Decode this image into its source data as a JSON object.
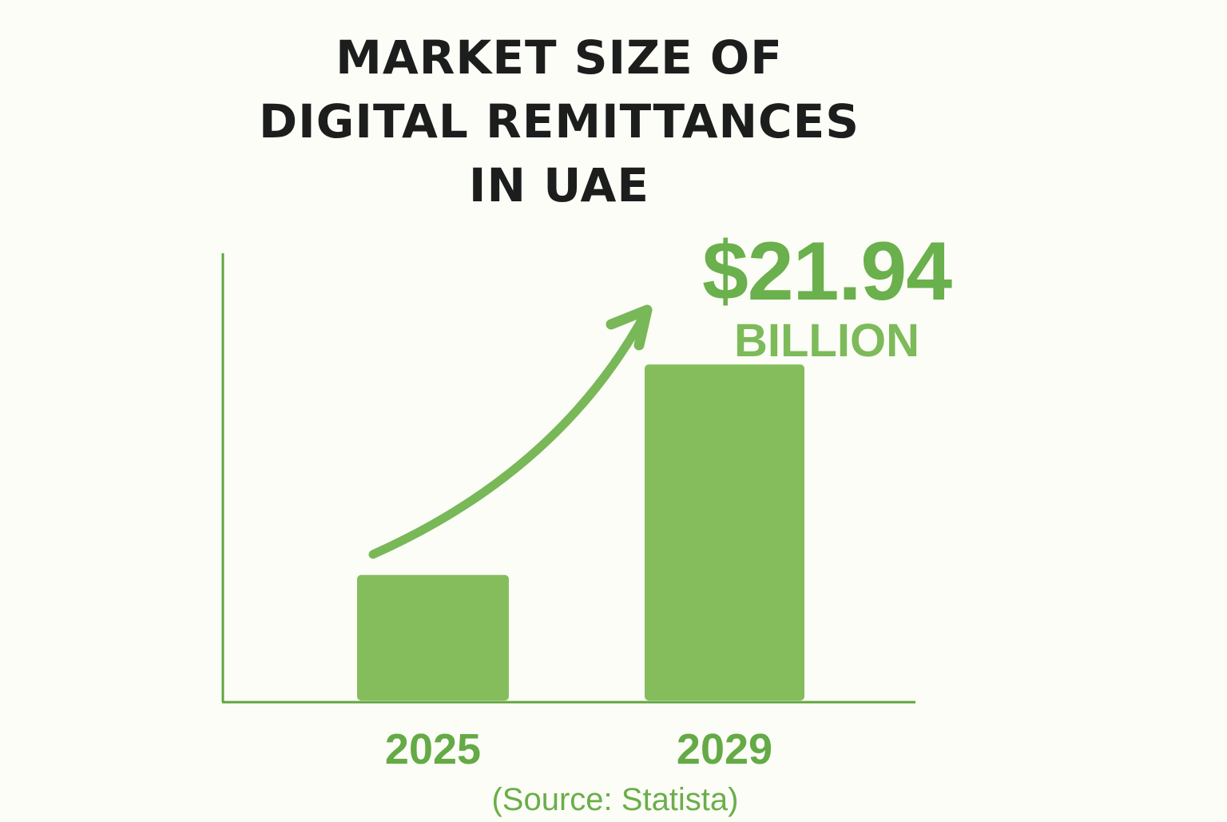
{
  "title_lines": [
    "MARKET SIZE OF",
    "DIGITAL REMITTANCES",
    "IN UAE"
  ],
  "callout": {
    "amount": "$21.94",
    "unit": "BILLION"
  },
  "source": "(Source: Statista)",
  "colors": {
    "bar": "#86bd5c",
    "axis": "#5fa53f",
    "label": "#64aa46",
    "arrow": "#78b858",
    "callout": "#6ab04c",
    "background": "#fdfdf7"
  },
  "chart_data": {
    "type": "bar",
    "title": "MARKET SIZE OF DIGITAL REMITTANCES IN UAE",
    "categories": [
      "2025",
      "2029"
    ],
    "values": [
      8.2,
      21.94
    ],
    "unit": "billion USD",
    "value_labels": [
      "",
      "$21.94 BILLION"
    ],
    "ylim": [
      0,
      29.2
    ],
    "grid": false,
    "annotation": "upward trend arrow from 2025 to 2029"
  }
}
